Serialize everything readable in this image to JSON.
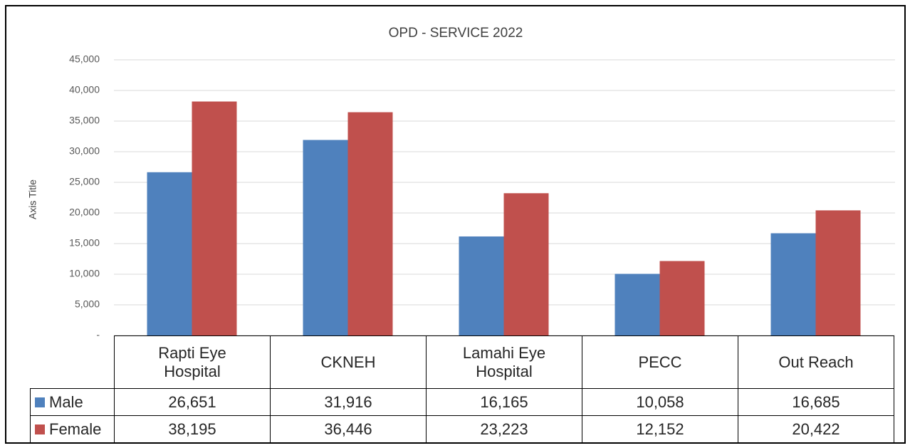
{
  "chart_data": {
    "type": "bar",
    "title": "OPD - SERVICE 2022",
    "y_label": "Axis Title",
    "categories": [
      "Rapti Eye Hospital",
      "CKNEH",
      "Lamahi Eye Hospital",
      "PECC",
      "Out Reach"
    ],
    "series": [
      {
        "name": "Male",
        "color": "#4f81bd",
        "values": [
          26651,
          31916,
          16165,
          10058,
          16685
        ],
        "value_labels": [
          "26,651",
          "31,916",
          "16,165",
          "10,058",
          "16,685"
        ]
      },
      {
        "name": "Female",
        "color": "#c0504d",
        "values": [
          38195,
          36446,
          23223,
          12152,
          20422
        ],
        "value_labels": [
          "38,195",
          "36,446",
          "23,223",
          "12,152",
          "20,422"
        ]
      }
    ],
    "ylim": [
      0,
      45000
    ],
    "yticks": [
      {
        "value": 0,
        "label": "-"
      },
      {
        "value": 5000,
        "label": "5,000"
      },
      {
        "value": 10000,
        "label": "10,000"
      },
      {
        "value": 15000,
        "label": "15,000"
      },
      {
        "value": 20000,
        "label": "20,000"
      },
      {
        "value": 25000,
        "label": "25,000"
      },
      {
        "value": 30000,
        "label": "30,000"
      },
      {
        "value": 35000,
        "label": "35,000"
      },
      {
        "value": 40000,
        "label": "40,000"
      },
      {
        "value": 45000,
        "label": "45,000"
      }
    ],
    "grid": true
  }
}
